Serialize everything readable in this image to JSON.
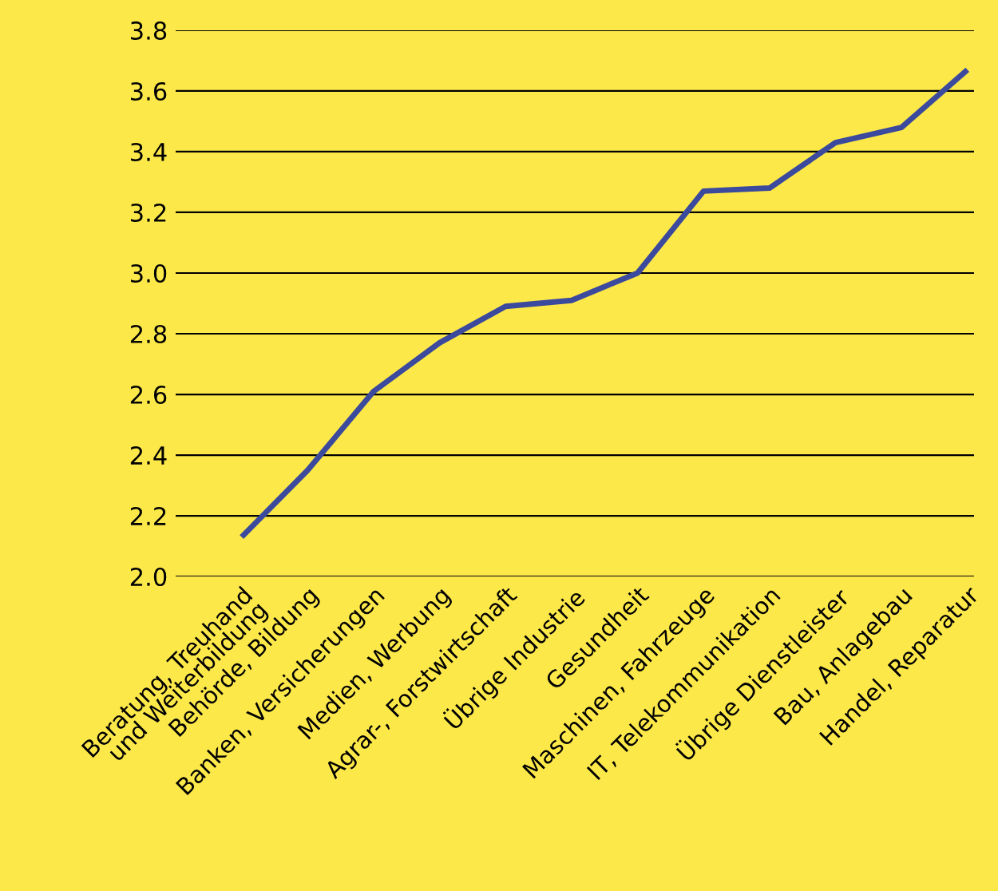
{
  "chart_data": {
    "type": "line",
    "categories": [
      "Beratung, Treuhand\nund Weiterbildung",
      "Behörde, Bildung",
      "Banken, Versicherungen",
      "Medien, Werbung",
      "Agrar-, Forstwirtschaft",
      "Übrige Industrie",
      "Gesundheit",
      "Maschinen, Fahrzeuge",
      "IT, Telekommunikation",
      "Übrige Dienstleister",
      "Bau, Anlagebau",
      "Handel, Reparatur"
    ],
    "series": [
      {
        "color": "#3b4a9c",
        "values": [
          2.13,
          2.35,
          2.61,
          2.77,
          2.89,
          2.91,
          3.0,
          3.27,
          3.28,
          3.43,
          3.48,
          3.67
        ]
      }
    ],
    "ylim": [
      2.0,
      3.8
    ],
    "yticks": [
      {
        "value": 2.0,
        "label": "2.0"
      },
      2.2,
      2.4,
      2.6,
      2.8,
      {
        "value": 3.0,
        "label": "3.0"
      },
      3.2,
      3.4,
      3.6,
      3.8
    ],
    "grid": "y",
    "legend": false,
    "marker": "none",
    "line_style": "solid"
  }
}
